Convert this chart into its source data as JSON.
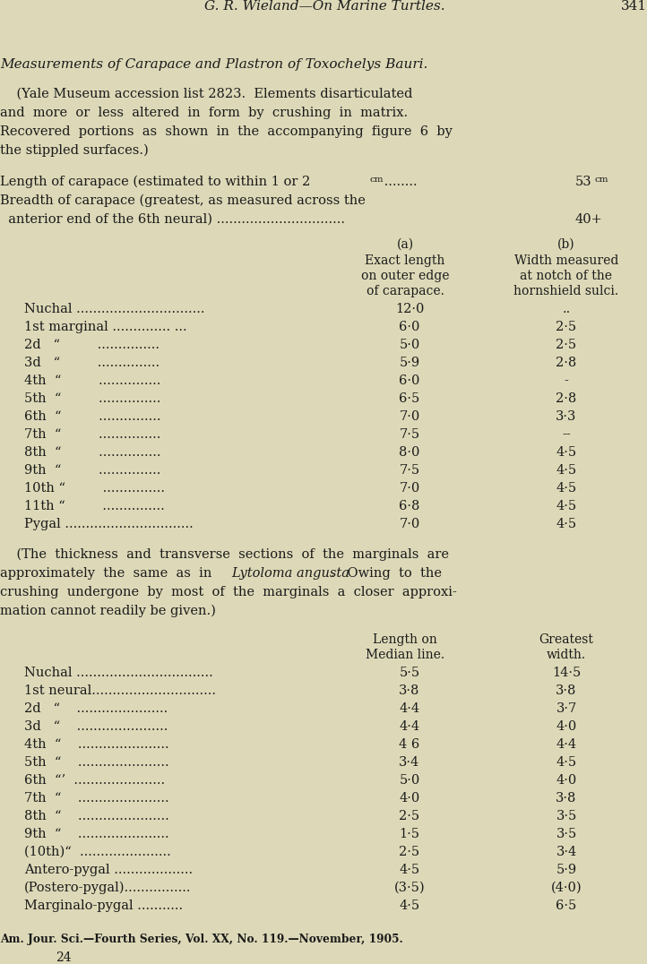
{
  "bg_color": "#ddd9b8",
  "text_color": "#1a1a1a",
  "page_header": "G. R. Wieland—On Marine Turtles.",
  "page_number": "341",
  "section_title": "Measurements of Carapace and Plastron of Toxochelys Bauri.",
  "marginal_rows": [
    [
      "Nuchal ...............................",
      "12·0",
      ".."
    ],
    [
      "1st marginal .............. ...",
      "6·0",
      "2·5"
    ],
    [
      "2d   “         ...............",
      "5·0",
      "2·5"
    ],
    [
      "3d   “         ...............",
      "5·9",
      "2·8"
    ],
    [
      "4th  “         ...............",
      "6·0",
      "-"
    ],
    [
      "5th  “         ...............",
      "6·5",
      "2·8"
    ],
    [
      "6th  “         ...............",
      "7·0",
      "3·3"
    ],
    [
      "7th  “         ...............",
      "7·5",
      "--"
    ],
    [
      "8th  “         ...............",
      "8·0",
      "4·5"
    ],
    [
      "9th  “         ...............",
      "7·5",
      "4·5"
    ],
    [
      "10th “         ...............",
      "7·0",
      "4·5"
    ],
    [
      "11th “         ...............",
      "6·8",
      "4·5"
    ],
    [
      "Pygal ...............................",
      "7·0",
      "4·5"
    ]
  ],
  "neural_rows": [
    [
      "Nuchal .................................",
      "5·5",
      "14·5"
    ],
    [
      "1st neural..............................",
      "3·8",
      "3·8"
    ],
    [
      "2d   “    ......................",
      "4·4",
      "3·7"
    ],
    [
      "3d   “    ......................",
      "4·4",
      "4·0"
    ],
    [
      "4th  “    ......................",
      "4 6",
      "4·4"
    ],
    [
      "5th  “    ......................",
      "3·4",
      "4·5"
    ],
    [
      "6th  “’  ......................",
      "5·0",
      "4·0"
    ],
    [
      "7th  “    ......................",
      "4·0",
      "3·8"
    ],
    [
      "8th  “    ......................",
      "2·5",
      "3·5"
    ],
    [
      "9th  “    ......................",
      "1·5",
      "3·5"
    ],
    [
      "(10th)“  ......................",
      "2·5",
      "3·4"
    ],
    [
      "Antero-pygal ...................",
      "4·5",
      "5·9"
    ],
    [
      "(Postero-pygal)................",
      "(3·5)",
      "(4·0)"
    ],
    [
      "Marginalo-pygal ...........",
      "4·5",
      "6·5"
    ]
  ],
  "footer": "Am. Jour. Sci.—Fourth Series, Vol. XX, No. 119.—November, 1905.",
  "footer_number": "24"
}
